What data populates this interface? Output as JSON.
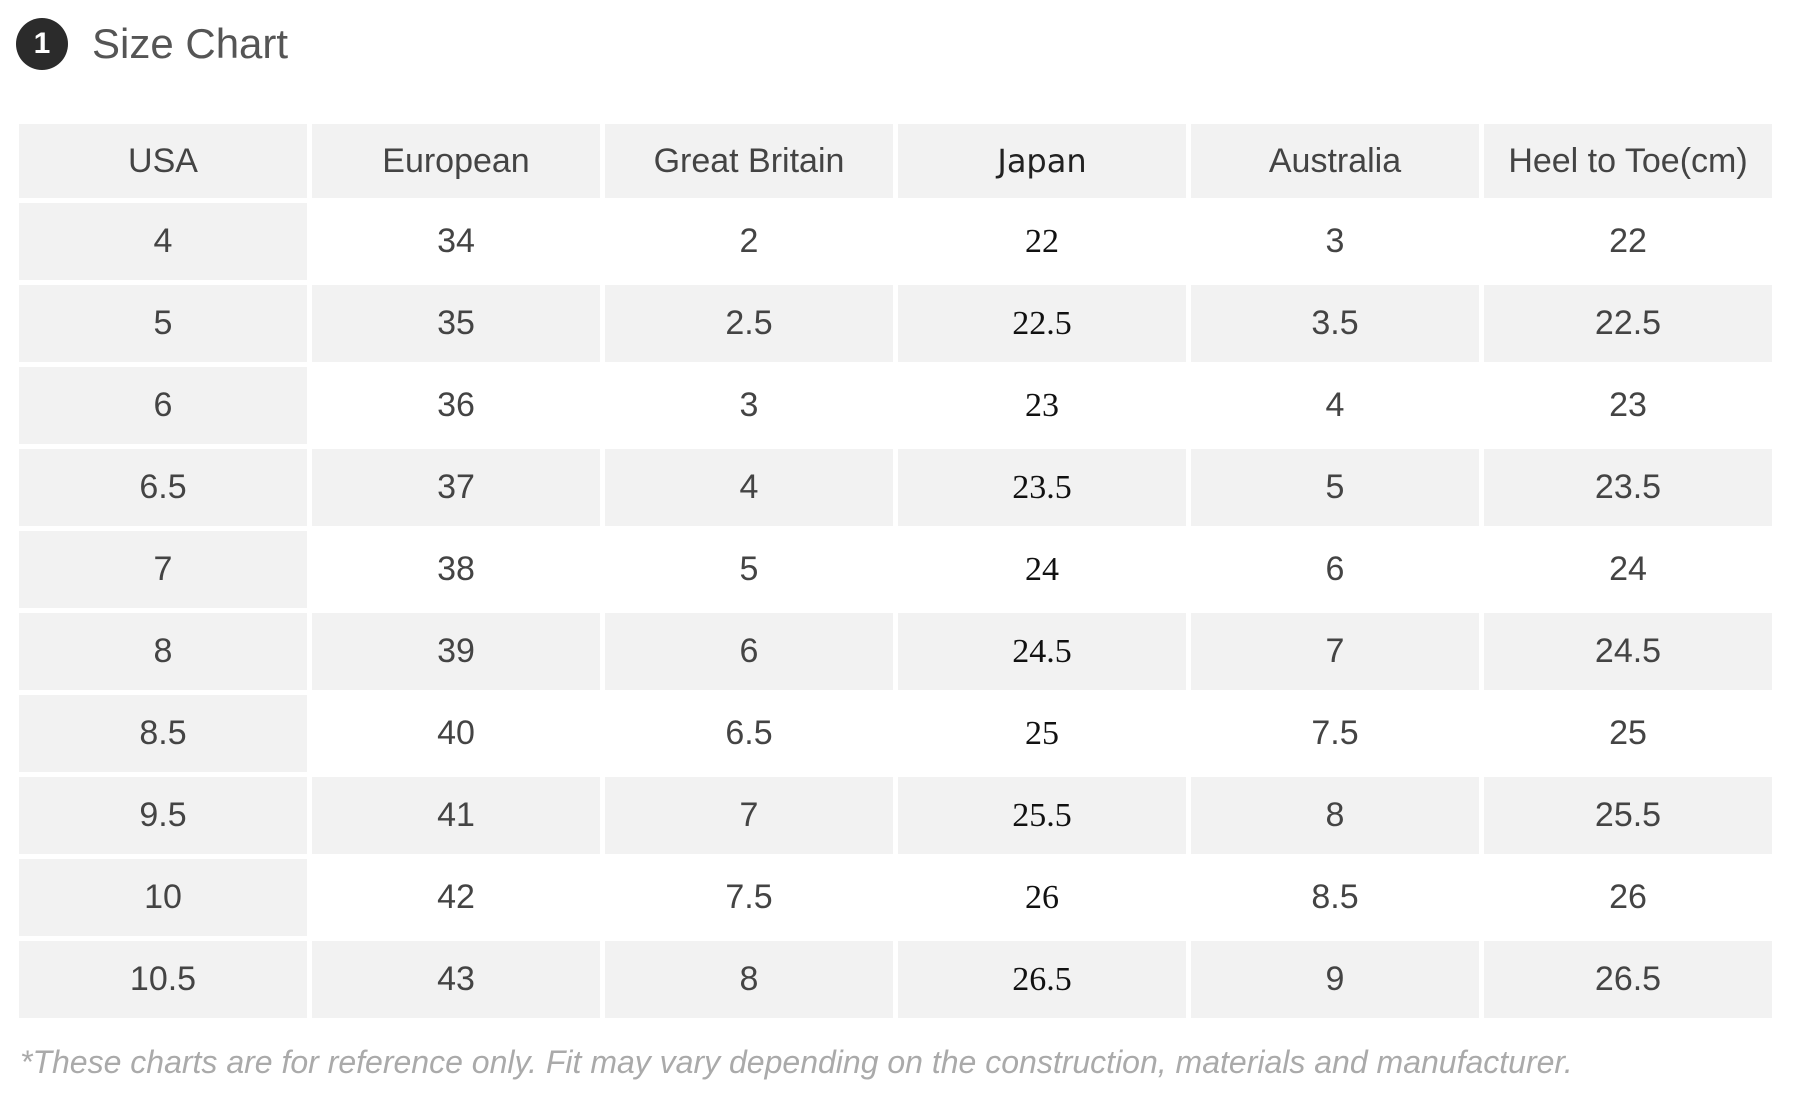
{
  "header": {
    "number": "1",
    "title": "Size Chart"
  },
  "table": {
    "columns": [
      "USA",
      "European",
      "Great Britain",
      "Japan",
      "Australia",
      "Heel to Toe(cm)"
    ],
    "rows": [
      [
        "4",
        "34",
        "2",
        "22",
        "3",
        "22"
      ],
      [
        "5",
        "35",
        "2.5",
        "22.5",
        "3.5",
        "22.5"
      ],
      [
        "6",
        "36",
        "3",
        "23",
        "4",
        "23"
      ],
      [
        "6.5",
        "37",
        "4",
        "23.5",
        "5",
        "23.5"
      ],
      [
        "7",
        "38",
        "5",
        "24",
        "6",
        "24"
      ],
      [
        "8",
        "39",
        "6",
        "24.5",
        "7",
        "24.5"
      ],
      [
        "8.5",
        "40",
        "6.5",
        "25",
        "7.5",
        "25"
      ],
      [
        "9.5",
        "41",
        "7",
        "25.5",
        "8",
        "25.5"
      ],
      [
        "10",
        "42",
        "7.5",
        "26",
        "8.5",
        "26"
      ],
      [
        "10.5",
        "43",
        "8",
        "26.5",
        "9",
        "26.5"
      ]
    ]
  },
  "footnote": "*These charts are for reference only. Fit may vary depending on the construction, materials and manufacturer."
}
